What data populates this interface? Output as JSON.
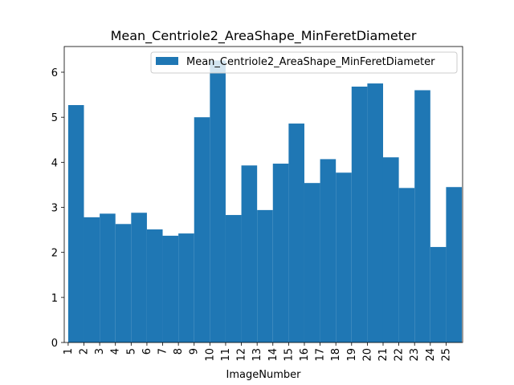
{
  "chart_data": {
    "type": "bar",
    "title": "Mean_Centriole2_AreaShape_MinFeretDiameter",
    "x_label": "ImageNumber",
    "categories": [
      "1",
      "2",
      "3",
      "4",
      "5",
      "6",
      "7",
      "8",
      "9",
      "10",
      "11",
      "12",
      "13",
      "14",
      "15",
      "16",
      "17",
      "18",
      "19",
      "20",
      "21",
      "22",
      "23",
      "24",
      "25"
    ],
    "series": [
      {
        "name": "Mean_Centriole2_AreaShape_MinFeretDiameter",
        "color": "#1f77b4",
        "values": [
          5.27,
          2.78,
          2.86,
          2.63,
          2.88,
          2.51,
          2.37,
          2.42,
          5.0,
          6.26,
          2.83,
          3.93,
          2.94,
          3.97,
          4.86,
          3.54,
          4.07,
          3.77,
          5.68,
          5.75,
          4.11,
          3.43,
          5.6,
          2.12,
          3.45
        ]
      }
    ],
    "xlim": [
      -0.25,
      25.05
    ],
    "ylim": [
      0,
      6.57
    ],
    "yticks": [
      0,
      1,
      2,
      3,
      4,
      5,
      6
    ],
    "legend": "upper right"
  }
}
